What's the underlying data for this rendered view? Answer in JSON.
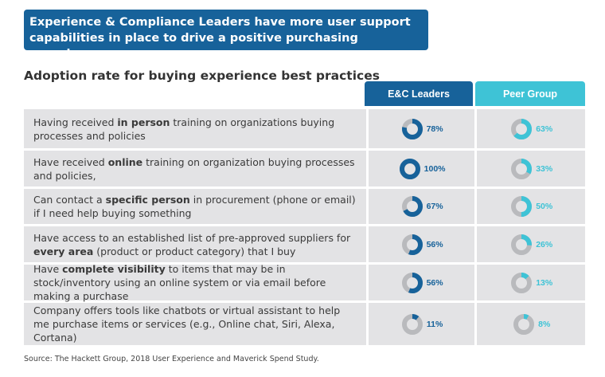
{
  "title": "Experience & Compliance Leaders have more user support capabilities in place to drive a positive purchasing experience",
  "subtitle": "Adoption rate for buying experience best practices",
  "colors": {
    "leaders": "#17629a",
    "peer": "#3ec3d6",
    "track": "#b9babd"
  },
  "chart_data": {
    "type": "table",
    "columns": [
      "E&C Leaders",
      "Peer Group"
    ],
    "rows": [
      {
        "pre": "Having received ",
        "bold": "in person",
        "post": " training on organizations buying processes and policies",
        "leaders": 78,
        "peer": 63,
        "leaders_label": "78%",
        "peer_label": "63%"
      },
      {
        "pre": "Have received ",
        "bold": "online",
        "post": " training on organization buying processes and policies,",
        "leaders": 100,
        "peer": 33,
        "leaders_label": "100%",
        "peer_label": "33%"
      },
      {
        "pre": "Can contact a ",
        "bold": "specific person",
        "post": " in procurement (phone or email) if I need help buying something",
        "leaders": 67,
        "peer": 50,
        "leaders_label": "67%",
        "peer_label": "50%"
      },
      {
        "pre": "Have access to an established list of pre-approved suppliers for ",
        "bold": "every area",
        "post": " (product or product  category) that I buy",
        "leaders": 56,
        "peer": 26,
        "leaders_label": "56%",
        "peer_label": "26%"
      },
      {
        "pre": "Have ",
        "bold": "complete visibility",
        "post": " to items that may be in stock/inventory using an online system or via email before making a purchase",
        "leaders": 56,
        "peer": 13,
        "leaders_label": "56%",
        "peer_label": "13%"
      },
      {
        "pre": "Company offers tools like chatbots or virtual assistant to help me purchase items or services (e.g., Online chat, Siri, Alexa, Cortana)",
        "bold": "",
        "post": "",
        "leaders": 11,
        "peer": 8,
        "leaders_label": "11%",
        "peer_label": "8%"
      }
    ]
  },
  "source": "Source: The Hackett Group, 2018 User Experience and Maverick Spend Study."
}
